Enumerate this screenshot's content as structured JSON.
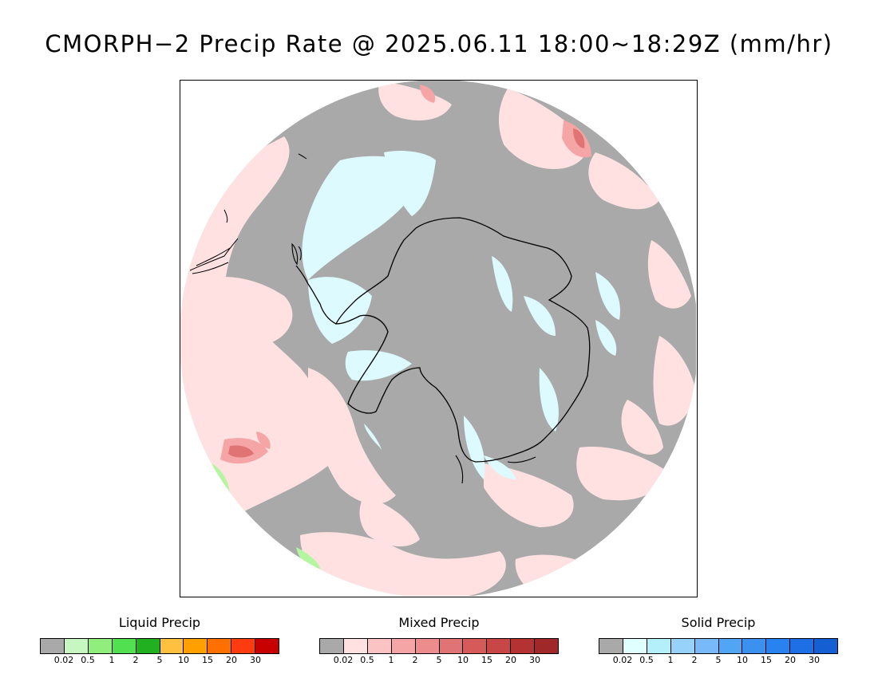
{
  "title": "CMORPH−2 Precip Rate @ 2025.06.11 18:00~18:29Z (mm/hr)",
  "map": {
    "projection": "south-polar-stereographic",
    "region": "Antarctica and Southern Ocean",
    "colors": {
      "background_grey": "#a9a9a9",
      "mixed_light": "#ffe1e1",
      "mixed_medium": "#f5a5a5",
      "mixed_strong": "#e07373",
      "solid_light": "#dcfaff",
      "liquid_light": "#b4f5a0",
      "coastline": "#000000"
    }
  },
  "legends": [
    {
      "title": "Liquid Precip",
      "colors": [
        "#a9a9a9",
        "#c7f7c0",
        "#90ee7c",
        "#50e050",
        "#20b020",
        "#ffc040",
        "#ffa000",
        "#ff7000",
        "#ff3c10",
        "#c80000"
      ],
      "ticks": [
        "0.02",
        "0.5",
        "1",
        "2",
        "5",
        "10",
        "15",
        "20",
        "30"
      ]
    },
    {
      "title": "Mixed Precip",
      "colors": [
        "#a9a9a9",
        "#ffe1e1",
        "#fbc3c3",
        "#f5a5a5",
        "#ec8c8c",
        "#e07373",
        "#d65a5a",
        "#c84646",
        "#b43232",
        "#a02828"
      ],
      "ticks": [
        "0.02",
        "0.5",
        "1",
        "2",
        "5",
        "10",
        "15",
        "20",
        "30"
      ]
    },
    {
      "title": "Solid Precip",
      "colors": [
        "#a9a9a9",
        "#e0ffff",
        "#b4f0fa",
        "#96d2fa",
        "#78b9fa",
        "#50a5f5",
        "#3c91f0",
        "#2882f0",
        "#1e6ee6",
        "#1460d2"
      ],
      "ticks": [
        "0.02",
        "0.5",
        "1",
        "2",
        "5",
        "10",
        "15",
        "20",
        "30"
      ]
    }
  ]
}
